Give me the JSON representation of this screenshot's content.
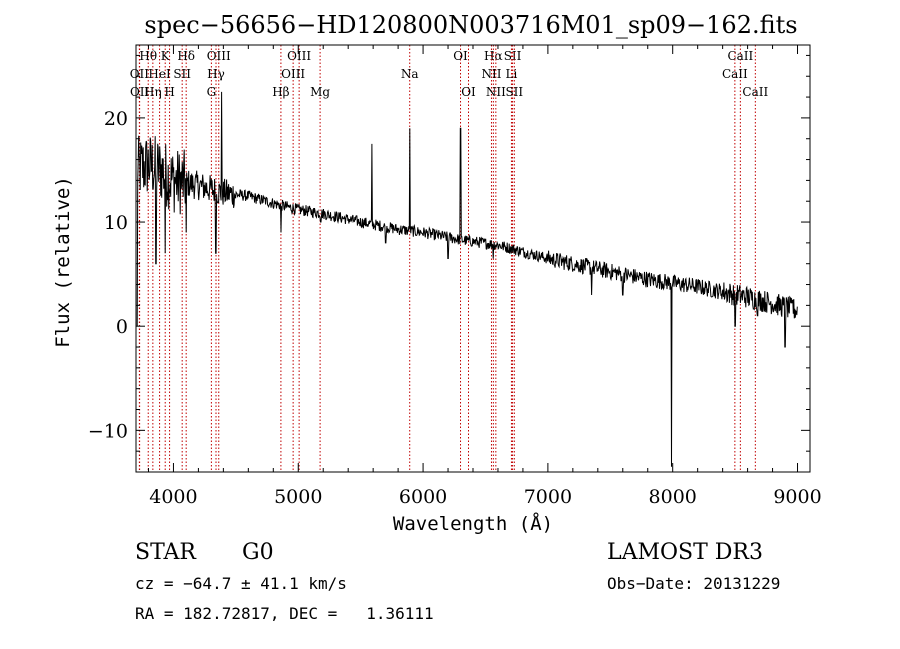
{
  "title": "spec−56656−HD120800N003716M01_sp09−162.fits",
  "footer": {
    "object_class": "STAR",
    "subclass": "G0",
    "survey": "LAMOST DR3",
    "cz": "cz = −64.7 ± 41.1 km/s",
    "obs_date": "Obs−Date: 20131229",
    "coords": "RA = 182.72817, DEC =   1.36111"
  },
  "chart_data": {
    "type": "line",
    "title": "spec−56656−HD120800N003716M01_sp09−162.fits",
    "xlabel": "Wavelength (Å)",
    "ylabel": "Flux (relative)",
    "xlim": [
      3700,
      9100
    ],
    "ylim": [
      -14,
      27
    ],
    "xticks": [
      4000,
      5000,
      6000,
      7000,
      8000,
      9000
    ],
    "yticks": [
      -10,
      0,
      10,
      20
    ],
    "xtick_labels": [
      "4000",
      "5000",
      "6000",
      "7000",
      "8000",
      "9000"
    ],
    "ytick_labels": [
      "−10",
      "0",
      "10",
      "20"
    ],
    "continuum_anchors": [
      [
        3700,
        15
      ],
      [
        3800,
        15.5
      ],
      [
        3900,
        15
      ],
      [
        4000,
        14
      ],
      [
        4200,
        13.5
      ],
      [
        4400,
        12.8
      ],
      [
        4600,
        12.5
      ],
      [
        4800,
        11.8
      ],
      [
        5000,
        11.2
      ],
      [
        5200,
        10.8
      ],
      [
        5500,
        10.0
      ],
      [
        5800,
        9.3
      ],
      [
        6000,
        9.0
      ],
      [
        6300,
        8.3
      ],
      [
        6600,
        7.8
      ],
      [
        7000,
        6.5
      ],
      [
        7400,
        5.5
      ],
      [
        7800,
        4.5
      ],
      [
        8200,
        3.8
      ],
      [
        8600,
        2.8
      ],
      [
        8800,
        2.2
      ],
      [
        9000,
        1.5
      ]
    ],
    "spikes": [
      [
        3710,
        0
      ],
      [
        3860,
        6
      ],
      [
        3933,
        7
      ],
      [
        4101,
        9
      ],
      [
        4340,
        7
      ],
      [
        4385,
        22.5
      ],
      [
        4861,
        9
      ],
      [
        5180,
        10
      ],
      [
        5590,
        17.5
      ],
      [
        5700,
        8
      ],
      [
        5893,
        19
      ],
      [
        6200,
        6.5
      ],
      [
        6300,
        19
      ],
      [
        6563,
        6.5
      ],
      [
        7350,
        3
      ],
      [
        7600,
        3
      ],
      [
        7990,
        -13.5
      ],
      [
        8500,
        0
      ],
      [
        8680,
        1
      ],
      [
        8900,
        -2
      ],
      [
        8960,
        2.5
      ]
    ],
    "spectral_lines": [
      {
        "name": "Hθ",
        "wavelength": 3798,
        "row": 0
      },
      {
        "name": "K",
        "wavelength": 3934,
        "row": 0
      },
      {
        "name": "Hδ",
        "wavelength": 4102,
        "row": 0
      },
      {
        "name": "OIII",
        "wavelength": 4363,
        "row": 0
      },
      {
        "name": "OIII",
        "wavelength": 5007,
        "row": 0
      },
      {
        "name": "OI",
        "wavelength": 6300,
        "row": 0
      },
      {
        "name": "Hα",
        "wavelength": 6563,
        "row": 0
      },
      {
        "name": "SII",
        "wavelength": 6717,
        "row": 0
      },
      {
        "name": "CaII",
        "wavelength": 8542,
        "row": 0
      },
      {
        "name": "OII",
        "wavelength": 3727,
        "row": 1
      },
      {
        "name": "HeI",
        "wavelength": 3889,
        "row": 1
      },
      {
        "name": "SII",
        "wavelength": 4070,
        "row": 1
      },
      {
        "name": "Hγ",
        "wavelength": 4341,
        "row": 1
      },
      {
        "name": "OIII",
        "wavelength": 4959,
        "row": 1
      },
      {
        "name": "Na",
        "wavelength": 5893,
        "row": 1
      },
      {
        "name": "NII",
        "wavelength": 6548,
        "row": 1
      },
      {
        "name": "Li",
        "wavelength": 6708,
        "row": 1
      },
      {
        "name": "CaII",
        "wavelength": 8498,
        "row": 1
      },
      {
        "name": "OII",
        "wavelength": 3729,
        "row": 2
      },
      {
        "name": "Hη",
        "wavelength": 3835,
        "row": 2
      },
      {
        "name": "H",
        "wavelength": 3969,
        "row": 2
      },
      {
        "name": "G",
        "wavelength": 4304,
        "row": 2
      },
      {
        "name": "Hβ",
        "wavelength": 4861,
        "row": 2
      },
      {
        "name": "Mg",
        "wavelength": 5175,
        "row": 2
      },
      {
        "name": "OI",
        "wavelength": 6364,
        "row": 2
      },
      {
        "name": "NII",
        "wavelength": 6583,
        "row": 2
      },
      {
        "name": "SII",
        "wavelength": 6731,
        "row": 2
      },
      {
        "name": "CaII",
        "wavelength": 8662,
        "row": 2
      }
    ]
  }
}
